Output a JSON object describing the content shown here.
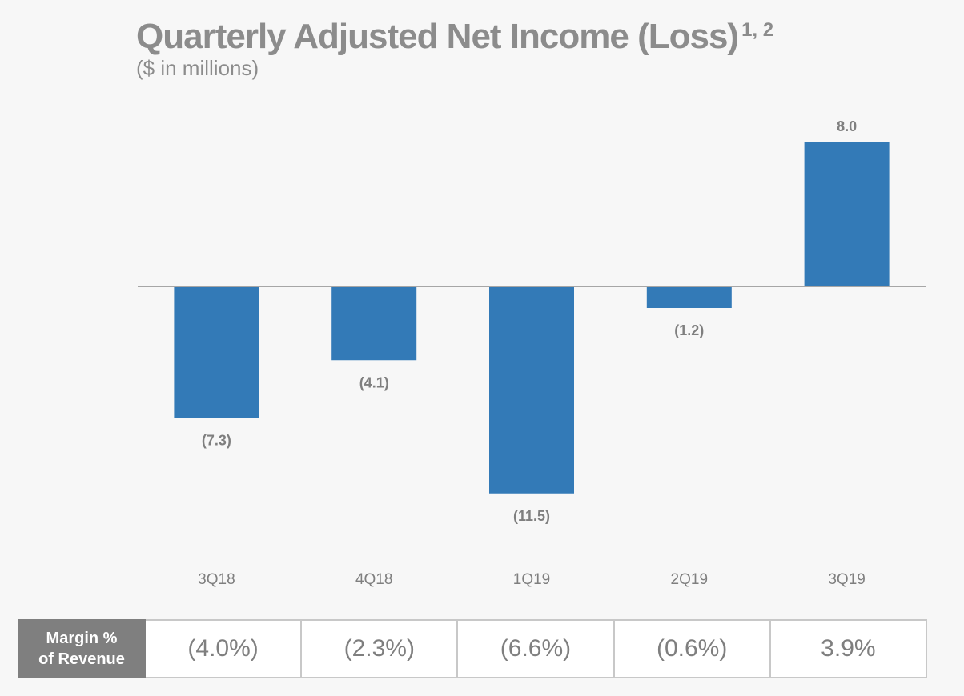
{
  "chart_data": {
    "type": "bar",
    "title": "Quarterly Adjusted Net Income (Loss)",
    "title_superscript": "1, 2",
    "subtitle": "($ in millions)",
    "categories": [
      "3Q18",
      "4Q18",
      "1Q19",
      "2Q19",
      "3Q19"
    ],
    "values": [
      -7.3,
      -4.1,
      -11.5,
      -1.2,
      8.0
    ],
    "data_labels": [
      "(7.3)",
      "(4.1)",
      "(11.5)",
      "(1.2)",
      "8.0"
    ],
    "ylim": [
      -11.5,
      8.0
    ],
    "grid": false,
    "bar_color": "#337ab7",
    "baseline_color": "#a6a6a6",
    "label_color": "#7f7f7f"
  },
  "margin_table": {
    "header_line1": "Margin %",
    "header_line2": "of Revenue",
    "values": [
      "(4.0%)",
      "(2.3%)",
      "(6.6%)",
      "(0.6%)",
      "3.9%"
    ],
    "header_bg": "#7f7f7f"
  }
}
